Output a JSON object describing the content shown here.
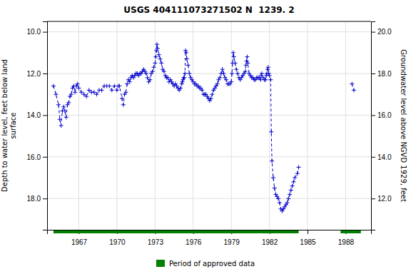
{
  "chart_data": {
    "type": "line",
    "title": "USGS 404111073271502 N  1239. 2",
    "y_label": "Depth to water level, feet below land\nsurface",
    "y2_label": "Groundwater level above NGVD 1929, feet",
    "xlim": [
      1964.5,
      1990.0
    ],
    "xticks": [
      1967,
      1970,
      1973,
      1976,
      1979,
      1982,
      1985,
      1988
    ],
    "ylim": [
      19.5,
      9.5
    ],
    "yticks": [
      {
        "value": 10.0,
        "label": "10.0"
      },
      {
        "value": 12.0,
        "label": "12.0"
      },
      {
        "value": 14.0,
        "label": "14.0"
      },
      {
        "value": 16.0,
        "label": "16.0"
      },
      {
        "value": 18.0,
        "label": "18.0"
      }
    ],
    "y2lim": [
      10.5,
      20.5
    ],
    "y2ticks": [
      {
        "value": 20.0,
        "label": "20.0"
      },
      {
        "value": 18.0,
        "label": "18.0"
      },
      {
        "value": 16.0,
        "label": "16.0"
      },
      {
        "value": 14.0,
        "label": "14.0"
      },
      {
        "value": 12.0,
        "label": "12.0"
      }
    ],
    "grid": true,
    "legend": "bottom",
    "series": [
      {
        "color": "#0000cc",
        "marker": "plus",
        "line_style": "dashed",
        "x": [
          1965.0,
          1965.2,
          1965.4,
          1965.5,
          1965.6,
          1965.7,
          1965.8,
          1965.9,
          1966.0,
          1966.1,
          1966.2,
          1966.3,
          1966.4,
          1966.5,
          1966.6,
          1966.7,
          1966.8,
          1966.9,
          1967.0,
          1967.2,
          1967.4,
          1967.6,
          1967.8,
          1968.0,
          1968.2,
          1968.4,
          1968.6,
          1968.8,
          1969.0,
          1969.2,
          1969.4,
          1969.6,
          1969.8,
          1970.0,
          1970.1,
          1970.2,
          1970.4,
          1970.5,
          1970.6,
          1970.7,
          1970.8,
          1970.9,
          1971.0,
          1971.1,
          1971.2,
          1971.3,
          1971.4,
          1971.5,
          1971.6,
          1971.7,
          1971.8,
          1971.9,
          1972.0,
          1972.1,
          1972.2,
          1972.3,
          1972.4,
          1972.5,
          1972.6,
          1972.7,
          1972.8,
          1972.9,
          1973.0,
          1973.05,
          1973.1,
          1973.15,
          1973.2,
          1973.3,
          1973.4,
          1973.5,
          1973.6,
          1973.7,
          1973.8,
          1973.9,
          1974.0,
          1974.1,
          1974.2,
          1974.3,
          1974.4,
          1974.5,
          1974.6,
          1974.7,
          1974.8,
          1974.9,
          1975.0,
          1975.1,
          1975.15,
          1975.2,
          1975.25,
          1975.3,
          1975.35,
          1975.4,
          1975.45,
          1975.5,
          1975.6,
          1975.7,
          1975.8,
          1975.9,
          1976.0,
          1976.1,
          1976.2,
          1976.3,
          1976.4,
          1976.5,
          1976.6,
          1976.7,
          1976.8,
          1976.9,
          1977.0,
          1977.1,
          1977.2,
          1977.3,
          1977.4,
          1977.5,
          1977.6,
          1977.7,
          1977.8,
          1977.9,
          1978.0,
          1978.1,
          1978.2,
          1978.3,
          1978.4,
          1978.5,
          1978.6,
          1978.7,
          1978.8,
          1978.9,
          1979.0,
          1979.05,
          1979.1,
          1979.15,
          1979.2,
          1979.3,
          1979.4,
          1979.5,
          1979.6,
          1979.7,
          1979.8,
          1979.9,
          1980.0,
          1980.1,
          1980.15,
          1980.2,
          1980.25,
          1980.3,
          1980.4,
          1980.5,
          1980.6,
          1980.7,
          1980.8,
          1980.9,
          1981.0,
          1981.1,
          1981.2,
          1981.3,
          1981.35,
          1981.4,
          1981.5,
          1981.6,
          1981.7,
          1981.75,
          1981.8,
          1981.85,
          1981.9,
          1981.95,
          1982.0,
          1982.1,
          1982.15,
          1982.2,
          1982.3,
          1982.4,
          1982.5,
          1982.6,
          1982.7,
          1982.8,
          1982.9,
          1983.0,
          1983.1,
          1983.2,
          1983.3,
          1983.4,
          1983.5,
          1983.6,
          1983.7,
          1983.8,
          1983.9,
          1984.0,
          1984.2,
          1984.3
        ],
        "values": [
          12.6,
          13.0,
          13.5,
          14.2,
          14.5,
          13.8,
          13.6,
          13.8,
          14.1,
          13.5,
          13.4,
          13.1,
          13.0,
          12.7,
          12.6,
          12.9,
          12.6,
          12.5,
          12.7,
          12.9,
          13.0,
          13.1,
          12.8,
          12.9,
          12.9,
          13.0,
          12.8,
          12.8,
          12.6,
          12.6,
          12.6,
          12.8,
          12.6,
          12.8,
          12.6,
          12.6,
          13.2,
          13.5,
          13.0,
          12.9,
          12.5,
          12.3,
          12.4,
          12.2,
          12.1,
          12.2,
          12.1,
          12.0,
          12.0,
          12.1,
          12.0,
          12.0,
          11.9,
          11.8,
          11.9,
          12.0,
          12.2,
          12.4,
          12.3,
          12.0,
          11.9,
          11.7,
          11.5,
          11.2,
          10.9,
          10.6,
          10.8,
          11.1,
          11.3,
          11.5,
          11.8,
          11.9,
          12.1,
          12.2,
          12.2,
          12.4,
          12.3,
          12.4,
          12.5,
          12.6,
          12.5,
          12.6,
          12.7,
          12.8,
          12.7,
          12.5,
          12.4,
          12.3,
          12.2,
          12.2,
          12.0,
          10.9,
          11.0,
          11.3,
          11.6,
          12.0,
          12.2,
          12.3,
          12.4,
          12.5,
          12.5,
          12.6,
          12.6,
          12.7,
          12.7,
          12.8,
          13.0,
          13.0,
          13.0,
          13.1,
          13.2,
          13.3,
          13.2,
          13.0,
          12.8,
          12.7,
          12.6,
          12.5,
          12.3,
          12.2,
          12.0,
          11.8,
          12.0,
          12.2,
          12.3,
          12.5,
          12.5,
          12.5,
          12.4,
          12.0,
          11.5,
          11.0,
          11.2,
          11.5,
          11.8,
          12.0,
          12.2,
          12.3,
          12.2,
          12.1,
          12.0,
          11.9,
          11.6,
          11.4,
          11.2,
          11.5,
          12.0,
          12.1,
          12.2,
          12.2,
          12.3,
          12.3,
          12.2,
          12.2,
          12.2,
          12.3,
          12.1,
          12.0,
          12.2,
          12.3,
          12.3,
          12.1,
          12.0,
          11.8,
          11.7,
          12.0,
          12.1,
          12.3,
          14.8,
          16.2,
          17.0,
          17.5,
          17.8,
          17.9,
          18.0,
          18.2,
          18.5,
          18.6,
          18.5,
          18.4,
          18.3,
          18.2,
          18.0,
          17.8,
          17.6,
          17.4,
          17.2,
          17.0,
          16.8,
          16.5
        ]
      },
      {
        "color": "#0000cc",
        "marker": "plus",
        "line_style": "dashed",
        "x": [
          1988.5,
          1988.65
        ],
        "values": [
          12.5,
          12.8
        ]
      }
    ],
    "approved_data": {
      "name": "Period of approved data",
      "color": "#008000",
      "periods": [
        [
          1965.0,
          1984.3
        ],
        [
          1987.6,
          1989.2
        ]
      ]
    }
  }
}
